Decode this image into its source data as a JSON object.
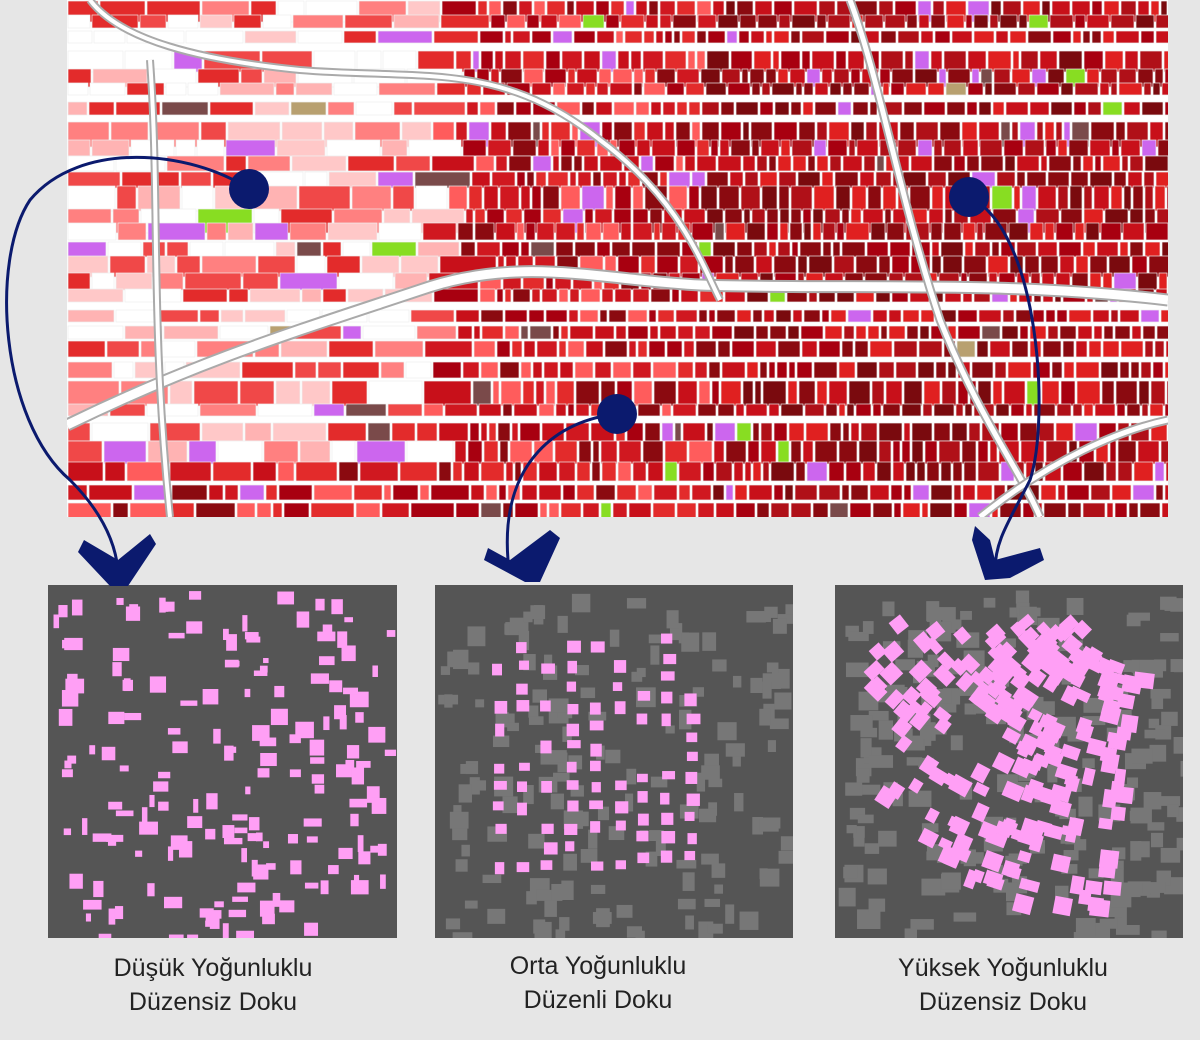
{
  "panels": [
    {
      "caption": [
        "Düşük Yoğunluklu",
        "Düzensiz Doku"
      ]
    },
    {
      "caption": [
        "Orta Yoğunluklu",
        "Düzenli Doku"
      ]
    },
    {
      "caption": [
        "Yüksek Yoğunluklu",
        "Düzensiz Doku"
      ]
    }
  ]
}
